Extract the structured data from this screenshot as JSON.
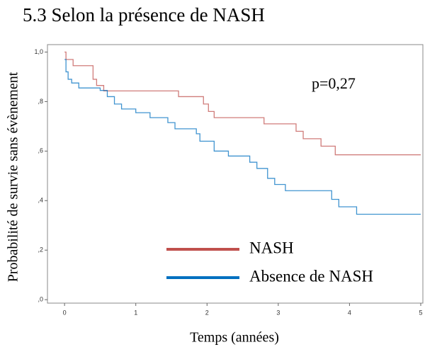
{
  "chart_data": {
    "type": "step",
    "title": "5.3 Selon la présence de NASH",
    "annotation": "p=0,27",
    "xlabel": "Temps (années)",
    "ylabel": "Probabilité de survie sans évènement",
    "xlim": [
      -0.24,
      5.03
    ],
    "xticks": [
      0,
      1,
      2,
      3,
      4,
      5
    ],
    "ylim": [
      -0.014,
      1.03
    ],
    "yticks": [
      {
        "value": 0,
        "label": ",0"
      },
      {
        "value": 0.2,
        "label": ",2"
      },
      {
        "value": 0.4,
        "label": ",4"
      },
      {
        "value": 0.6,
        "label": ",6"
      },
      {
        "value": 0.8,
        "label": ",8"
      },
      {
        "value": 1,
        "label": "1,0"
      }
    ],
    "series": [
      {
        "name": "NASH",
        "color": "#c0504d",
        "x": [
          0,
          0.02,
          0.12,
          0.4,
          0.45,
          0.55,
          1.6,
          1.95,
          2.02,
          2.1,
          2.8,
          3.25,
          3.35,
          3.6,
          3.8,
          5.0
        ],
        "values": [
          1.0,
          0.97,
          0.945,
          0.89,
          0.865,
          0.843,
          0.82,
          0.79,
          0.76,
          0.735,
          0.71,
          0.68,
          0.65,
          0.62,
          0.585,
          0.585
        ]
      },
      {
        "name": "Absence de NASH",
        "color": "#0070c0",
        "x": [
          0,
          0.02,
          0.05,
          0.1,
          0.2,
          0.5,
          0.6,
          0.7,
          0.8,
          1.0,
          1.2,
          1.45,
          1.55,
          1.85,
          1.9,
          2.1,
          2.3,
          2.6,
          2.7,
          2.85,
          2.95,
          3.1,
          3.75,
          3.85,
          4.1,
          5.0
        ],
        "values": [
          0.97,
          0.92,
          0.89,
          0.875,
          0.855,
          0.845,
          0.82,
          0.79,
          0.77,
          0.755,
          0.735,
          0.715,
          0.69,
          0.67,
          0.64,
          0.6,
          0.58,
          0.555,
          0.53,
          0.49,
          0.465,
          0.44,
          0.405,
          0.375,
          0.345,
          0.345
        ]
      }
    ]
  }
}
